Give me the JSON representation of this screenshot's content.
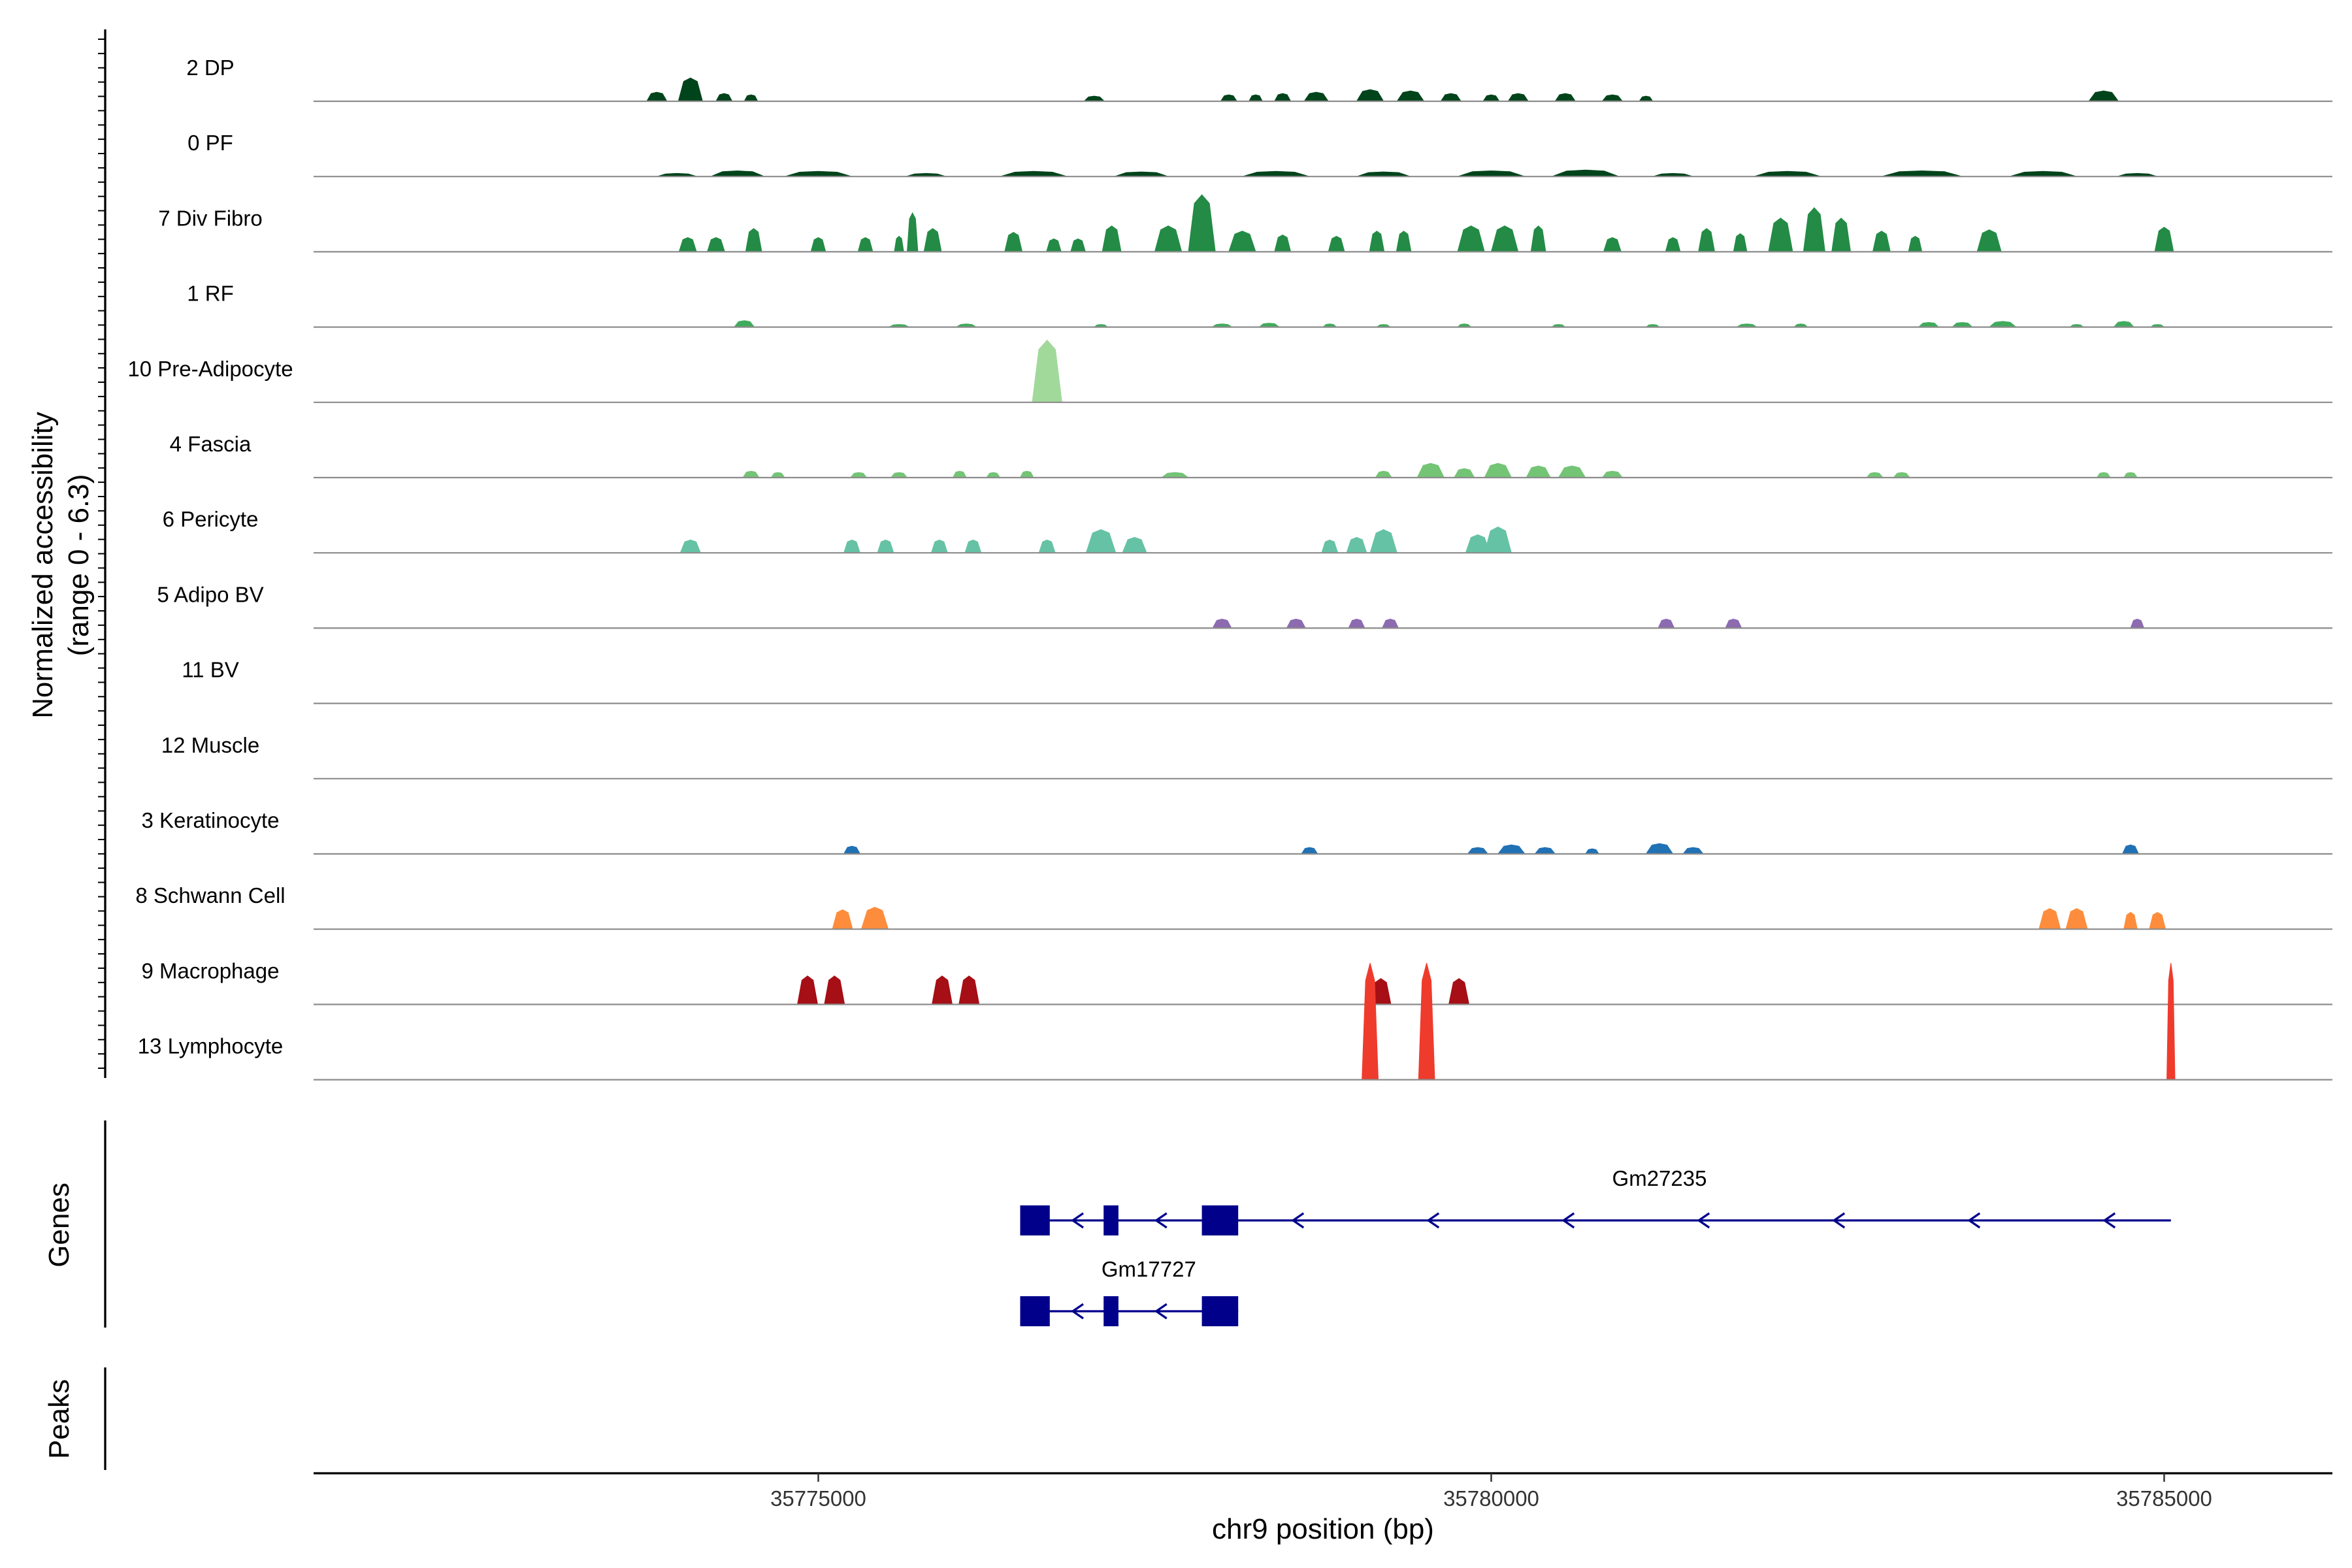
{
  "chart_data": {
    "type": "area",
    "ylabel_line1": "Normalized accessibility",
    "ylabel_line2": "(range 0 - 6.3)",
    "y_range": [
      0,
      6.3
    ],
    "xlabel": "chr9 position (bp)",
    "xlim": [
      35771250,
      35786250
    ],
    "x_ticks": [
      {
        "value": 35775000,
        "label": "35775000"
      },
      {
        "value": 35780000,
        "label": "35780000"
      },
      {
        "value": 35785000,
        "label": "35785000"
      }
    ],
    "panel_labels": {
      "genes": "Genes",
      "peaks": "Peaks"
    },
    "tracks": [
      {
        "name": "2 DP",
        "color": "#00441b",
        "peaks": [
          [
            35773800,
            0.35,
            150
          ],
          [
            35774050,
            0.9,
            180
          ],
          [
            35774300,
            0.3,
            120
          ],
          [
            35774500,
            0.25,
            100
          ],
          [
            35777050,
            0.2,
            150
          ],
          [
            35778050,
            0.25,
            120
          ],
          [
            35778250,
            0.25,
            100
          ],
          [
            35778450,
            0.3,
            120
          ],
          [
            35778700,
            0.35,
            180
          ],
          [
            35779100,
            0.45,
            200
          ],
          [
            35779400,
            0.4,
            200
          ],
          [
            35779700,
            0.3,
            150
          ],
          [
            35780000,
            0.25,
            120
          ],
          [
            35780200,
            0.3,
            150
          ],
          [
            35780550,
            0.3,
            150
          ],
          [
            35780900,
            0.25,
            150
          ],
          [
            35781150,
            0.2,
            100
          ],
          [
            35784550,
            0.4,
            220
          ]
        ]
      },
      {
        "name": "0 PF",
        "color": "#00441b",
        "peaks": [
          [
            35773950,
            0.12,
            300
          ],
          [
            35774400,
            0.22,
            400
          ],
          [
            35775000,
            0.2,
            500
          ],
          [
            35775800,
            0.12,
            300
          ],
          [
            35776600,
            0.2,
            500
          ],
          [
            35777400,
            0.18,
            400
          ],
          [
            35778400,
            0.2,
            500
          ],
          [
            35779200,
            0.18,
            400
          ],
          [
            35780000,
            0.22,
            500
          ],
          [
            35780700,
            0.25,
            500
          ],
          [
            35781350,
            0.12,
            300
          ],
          [
            35782200,
            0.2,
            500
          ],
          [
            35783200,
            0.22,
            600
          ],
          [
            35784100,
            0.2,
            500
          ],
          [
            35784800,
            0.12,
            300
          ]
        ]
      },
      {
        "name": "7 Div Fibro",
        "color": "#238b45",
        "peaks": [
          [
            35774030,
            0.55,
            130
          ],
          [
            35774240,
            0.55,
            130
          ],
          [
            35774520,
            0.9,
            120
          ],
          [
            35775000,
            0.55,
            110
          ],
          [
            35775350,
            0.55,
            110
          ],
          [
            35775600,
            0.6,
            70
          ],
          [
            35775700,
            1.5,
            80
          ],
          [
            35775850,
            0.9,
            130
          ],
          [
            35776450,
            0.75,
            130
          ],
          [
            35776750,
            0.5,
            110
          ],
          [
            35776930,
            0.5,
            110
          ],
          [
            35777180,
            1.0,
            140
          ],
          [
            35777600,
            1.0,
            200
          ],
          [
            35777850,
            2.2,
            200
          ],
          [
            35778150,
            0.8,
            200
          ],
          [
            35778450,
            0.65,
            120
          ],
          [
            35778850,
            0.6,
            120
          ],
          [
            35779150,
            0.8,
            110
          ],
          [
            35779350,
            0.8,
            110
          ],
          [
            35779850,
            1.0,
            200
          ],
          [
            35780100,
            1.0,
            200
          ],
          [
            35780350,
            1.0,
            110
          ],
          [
            35780900,
            0.55,
            130
          ],
          [
            35781350,
            0.55,
            110
          ],
          [
            35781600,
            0.9,
            120
          ],
          [
            35781850,
            0.7,
            100
          ],
          [
            35782150,
            1.3,
            180
          ],
          [
            35782400,
            1.7,
            160
          ],
          [
            35782600,
            1.3,
            140
          ],
          [
            35782900,
            0.8,
            130
          ],
          [
            35783150,
            0.6,
            100
          ],
          [
            35783700,
            0.85,
            180
          ],
          [
            35785000,
            0.95,
            140
          ]
        ]
      },
      {
        "name": "1 RF",
        "color": "#41ab5d",
        "peaks": [
          [
            35774450,
            0.25,
            150
          ],
          [
            35775600,
            0.1,
            150
          ],
          [
            35776100,
            0.12,
            150
          ],
          [
            35777100,
            0.1,
            100
          ],
          [
            35778000,
            0.12,
            150
          ],
          [
            35778350,
            0.15,
            150
          ],
          [
            35778800,
            0.12,
            100
          ],
          [
            35779200,
            0.1,
            100
          ],
          [
            35779800,
            0.12,
            100
          ],
          [
            35780500,
            0.1,
            100
          ],
          [
            35781200,
            0.1,
            100
          ],
          [
            35781900,
            0.12,
            150
          ],
          [
            35782300,
            0.12,
            100
          ],
          [
            35783250,
            0.18,
            150
          ],
          [
            35783500,
            0.18,
            150
          ],
          [
            35783800,
            0.22,
            200
          ],
          [
            35784350,
            0.1,
            100
          ],
          [
            35784700,
            0.22,
            150
          ],
          [
            35784950,
            0.1,
            100
          ]
        ]
      },
      {
        "name": "10 Pre-Adipocyte",
        "color": "#a1d99b",
        "peaks": [
          [
            35776700,
            2.4,
            220
          ]
        ]
      },
      {
        "name": "4 Fascia",
        "color": "#74c476",
        "peaks": [
          [
            35774500,
            0.25,
            120
          ],
          [
            35774700,
            0.2,
            100
          ],
          [
            35775300,
            0.2,
            120
          ],
          [
            35775600,
            0.2,
            120
          ],
          [
            35776050,
            0.25,
            100
          ],
          [
            35776300,
            0.2,
            100
          ],
          [
            35776550,
            0.25,
            100
          ],
          [
            35777650,
            0.2,
            200
          ],
          [
            35779200,
            0.25,
            120
          ],
          [
            35779550,
            0.55,
            200
          ],
          [
            35779800,
            0.35,
            150
          ],
          [
            35780050,
            0.55,
            200
          ],
          [
            35780350,
            0.45,
            180
          ],
          [
            35780600,
            0.45,
            200
          ],
          [
            35780900,
            0.25,
            150
          ],
          [
            35782850,
            0.2,
            120
          ],
          [
            35783050,
            0.2,
            120
          ],
          [
            35784550,
            0.2,
            100
          ],
          [
            35784750,
            0.2,
            100
          ]
        ]
      },
      {
        "name": "6 Pericyte",
        "color": "#66c2a4",
        "peaks": [
          [
            35774050,
            0.5,
            150
          ],
          [
            35775250,
            0.5,
            120
          ],
          [
            35775500,
            0.5,
            120
          ],
          [
            35775900,
            0.5,
            120
          ],
          [
            35776150,
            0.5,
            120
          ],
          [
            35776700,
            0.5,
            120
          ],
          [
            35777100,
            0.9,
            220
          ],
          [
            35777350,
            0.6,
            180
          ],
          [
            35778800,
            0.5,
            120
          ],
          [
            35779000,
            0.6,
            150
          ],
          [
            35779200,
            0.9,
            200
          ],
          [
            35779900,
            0.7,
            180
          ],
          [
            35780050,
            1.0,
            200
          ]
        ]
      },
      {
        "name": "5 Adipo BV",
        "color": "#8c6bb1",
        "peaks": [
          [
            35778000,
            0.35,
            140
          ],
          [
            35778550,
            0.35,
            140
          ],
          [
            35779000,
            0.35,
            120
          ],
          [
            35779250,
            0.35,
            120
          ],
          [
            35781300,
            0.35,
            120
          ],
          [
            35781800,
            0.35,
            120
          ],
          [
            35784800,
            0.35,
            100
          ]
        ]
      },
      {
        "name": "11 BV",
        "color": "#6a51a3",
        "peaks": []
      },
      {
        "name": "12 Muscle",
        "color": "#2171b5",
        "peaks": []
      },
      {
        "name": "3 Keratinocyte",
        "color": "#2171b5",
        "peaks": [
          [
            35775250,
            0.3,
            120
          ],
          [
            35778650,
            0.25,
            120
          ],
          [
            35779900,
            0.25,
            150
          ],
          [
            35780150,
            0.35,
            200
          ],
          [
            35780400,
            0.25,
            150
          ],
          [
            35780750,
            0.2,
            100
          ],
          [
            35781250,
            0.4,
            200
          ],
          [
            35781500,
            0.25,
            150
          ],
          [
            35784750,
            0.35,
            120
          ]
        ]
      },
      {
        "name": "8 Schwann Cell",
        "color": "#fd8d3c",
        "peaks": [
          [
            35775180,
            0.75,
            150
          ],
          [
            35775420,
            0.85,
            200
          ],
          [
            35784150,
            0.8,
            160
          ],
          [
            35784350,
            0.8,
            160
          ],
          [
            35784750,
            0.65,
            100
          ],
          [
            35784950,
            0.65,
            120
          ]
        ]
      },
      {
        "name": "9 Macrophage",
        "color": "#a50f15",
        "peaks": [
          [
            35774920,
            1.1,
            150
          ],
          [
            35775120,
            1.1,
            150
          ],
          [
            35775920,
            1.1,
            150
          ],
          [
            35776120,
            1.1,
            150
          ],
          [
            35779180,
            1.0,
            150
          ],
          [
            35779760,
            1.0,
            150
          ]
        ]
      },
      {
        "name": "13 Lymphocyte",
        "color": "#ef3b2c",
        "peaks": [
          [
            35779100,
            4.5,
            120
          ],
          [
            35779520,
            4.5,
            120
          ],
          [
            35785050,
            4.5,
            60
          ]
        ]
      }
    ],
    "genes": [
      {
        "name": "Gm27235",
        "start": 35776500,
        "end": 35785050,
        "strand": "-",
        "exons": [
          [
            35776500,
            35776720
          ],
          [
            35777120,
            35777230
          ],
          [
            35777850,
            35778120
          ]
        ]
      },
      {
        "name": "Gm17727",
        "start": 35776500,
        "end": 35778120,
        "strand": "-",
        "exons": [
          [
            35776500,
            35776720
          ],
          [
            35777120,
            35777230
          ],
          [
            35777850,
            35778120
          ]
        ]
      }
    ],
    "peaks_track": []
  }
}
